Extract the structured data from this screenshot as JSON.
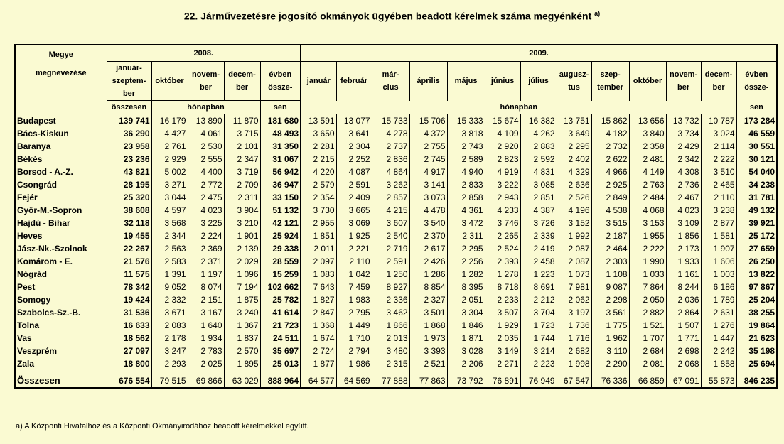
{
  "title": "22. Járművezetésre jogosító okmányok ügyében beadott kérelmek száma megyénként",
  "title_note": "a)",
  "header": {
    "county_col": [
      "Megye",
      "megnevezése"
    ],
    "year2008": "2008.",
    "year2009": "2009.",
    "cols2008": [
      "január-\nszeptem-\nber",
      "október",
      "novem-\nber",
      "decem-\nber",
      "évben\nössze-"
    ],
    "cols2009": [
      "január",
      "február",
      "már-\ncius",
      "április",
      "május",
      "június",
      "július",
      "augusz-\ntus",
      "szep-\ntember",
      "október",
      "novem-\nber",
      "decem-\nber",
      "évben\nössze-"
    ],
    "osszesen": "összesen",
    "honapban": "hónapban",
    "sen": "sen"
  },
  "rows": [
    {
      "name": "Budapest",
      "v": [
        "139 741",
        "16 179",
        "13 890",
        "11 870",
        "181 680",
        "13 591",
        "13 077",
        "15 733",
        "15 706",
        "15 333",
        "15 674",
        "16 382",
        "13 751",
        "15 862",
        "13 656",
        "13 732",
        "10 787",
        "173 284"
      ]
    },
    {
      "name": "Bács-Kiskun",
      "v": [
        "36 290",
        "4 427",
        "4 061",
        "3 715",
        "48 493",
        "3 650",
        "3 641",
        "4 278",
        "4 372",
        "3 818",
        "4 109",
        "4 262",
        "3 649",
        "4 182",
        "3 840",
        "3 734",
        "3 024",
        "46 559"
      ]
    },
    {
      "name": "Baranya",
      "v": [
        "23 958",
        "2 761",
        "2 530",
        "2 101",
        "31 350",
        "2 281",
        "2 304",
        "2 737",
        "2 755",
        "2 743",
        "2 920",
        "2 883",
        "2 295",
        "2 732",
        "2 358",
        "2 429",
        "2 114",
        "30 551"
      ]
    },
    {
      "name": "Békés",
      "v": [
        "23 236",
        "2 929",
        "2 555",
        "2 347",
        "31 067",
        "2 215",
        "2 252",
        "2 836",
        "2 745",
        "2 589",
        "2 823",
        "2 592",
        "2 402",
        "2 622",
        "2 481",
        "2 342",
        "2 222",
        "30 121"
      ]
    },
    {
      "name": "Borsod - A.-Z.",
      "v": [
        "43 821",
        "5 002",
        "4 400",
        "3 719",
        "56 942",
        "4 220",
        "4 087",
        "4 864",
        "4 917",
        "4 940",
        "4 919",
        "4 831",
        "4 329",
        "4 966",
        "4 149",
        "4 308",
        "3 510",
        "54 040"
      ]
    },
    {
      "name": "Csongrád",
      "v": [
        "28 195",
        "3 271",
        "2 772",
        "2 709",
        "36 947",
        "2 579",
        "2 591",
        "3 262",
        "3 141",
        "2 833",
        "3 222",
        "3 085",
        "2 636",
        "2 925",
        "2 763",
        "2 736",
        "2 465",
        "34 238"
      ]
    },
    {
      "name": "Fejér",
      "v": [
        "25 320",
        "3 044",
        "2 475",
        "2 311",
        "33 150",
        "2 354",
        "2 409",
        "2 857",
        "3 073",
        "2 858",
        "2 943",
        "2 851",
        "2 526",
        "2 849",
        "2 484",
        "2 467",
        "2 110",
        "31 781"
      ]
    },
    {
      "name": "Győr-M.-Sopron",
      "v": [
        "38 608",
        "4 597",
        "4 023",
        "3 904",
        "51 132",
        "3 730",
        "3 665",
        "4 215",
        "4 478",
        "4 361",
        "4 233",
        "4 387",
        "4 196",
        "4 538",
        "4 068",
        "4 023",
        "3 238",
        "49 132"
      ]
    },
    {
      "name": "Hajdú - Bihar",
      "v": [
        "32 118",
        "3 568",
        "3 225",
        "3 210",
        "42 121",
        "2 955",
        "3 069",
        "3 607",
        "3 540",
        "3 472",
        "3 746",
        "3 726",
        "3 152",
        "3 515",
        "3 153",
        "3 109",
        "2 877",
        "39 921"
      ]
    },
    {
      "name": "Heves",
      "v": [
        "19 455",
        "2 344",
        "2 224",
        "1 901",
        "25 924",
        "1 851",
        "1 925",
        "2 540",
        "2 370",
        "2 311",
        "2 265",
        "2 339",
        "1 992",
        "2 187",
        "1 955",
        "1 856",
        "1 581",
        "25 172"
      ]
    },
    {
      "name": "Jász-Nk.-Szolnok",
      "v": [
        "22 267",
        "2 563",
        "2 369",
        "2 139",
        "29 338",
        "2 011",
        "2 221",
        "2 719",
        "2 617",
        "2 295",
        "2 524",
        "2 419",
        "2 087",
        "2 464",
        "2 222",
        "2 173",
        "1 907",
        "27 659"
      ]
    },
    {
      "name": "Komárom - E.",
      "v": [
        "21 576",
        "2 583",
        "2 371",
        "2 029",
        "28 559",
        "2 097",
        "2 110",
        "2 591",
        "2 426",
        "2 256",
        "2 393",
        "2 458",
        "2 087",
        "2 303",
        "1 990",
        "1 933",
        "1 606",
        "26 250"
      ]
    },
    {
      "name": "Nógrád",
      "v": [
        "11 575",
        "1 391",
        "1 197",
        "1 096",
        "15 259",
        "1 083",
        "1 042",
        "1 250",
        "1 286",
        "1 282",
        "1 278",
        "1 223",
        "1 073",
        "1 108",
        "1 033",
        "1 161",
        "1 003",
        "13 822"
      ]
    },
    {
      "name": "Pest",
      "v": [
        "78 342",
        "9 052",
        "8 074",
        "7 194",
        "102 662",
        "7 643",
        "7 459",
        "8 927",
        "8 854",
        "8 395",
        "8 718",
        "8 691",
        "7 981",
        "9 087",
        "7 864",
        "8 244",
        "6 186",
        "97 867"
      ]
    },
    {
      "name": "Somogy",
      "v": [
        "19 424",
        "2 332",
        "2 151",
        "1 875",
        "25 782",
        "1 827",
        "1 983",
        "2 336",
        "2 327",
        "2 051",
        "2 233",
        "2 212",
        "2 062",
        "2 298",
        "2 050",
        "2 036",
        "1 789",
        "25 204"
      ]
    },
    {
      "name": "Szabolcs-Sz.-B.",
      "v": [
        "31 536",
        "3 671",
        "3 167",
        "3 240",
        "41 614",
        "2 847",
        "2 795",
        "3 462",
        "3 501",
        "3 304",
        "3 507",
        "3 704",
        "3 197",
        "3 561",
        "2 882",
        "2 864",
        "2 631",
        "38 255"
      ]
    },
    {
      "name": "Tolna",
      "v": [
        "16 633",
        "2 083",
        "1 640",
        "1 367",
        "21 723",
        "1 368",
        "1 449",
        "1 866",
        "1 868",
        "1 846",
        "1 929",
        "1 723",
        "1 736",
        "1 775",
        "1 521",
        "1 507",
        "1 276",
        "19 864"
      ]
    },
    {
      "name": "Vas",
      "v": [
        "18 562",
        "2 178",
        "1 934",
        "1 837",
        "24 511",
        "1 674",
        "1 710",
        "2 013",
        "1 973",
        "1 871",
        "2 035",
        "1 744",
        "1 716",
        "1 962",
        "1 707",
        "1 771",
        "1 447",
        "21 623"
      ]
    },
    {
      "name": "Veszprém",
      "v": [
        "27 097",
        "3 247",
        "2 783",
        "2 570",
        "35 697",
        "2 724",
        "2 794",
        "3 480",
        "3 393",
        "3 028",
        "3 149",
        "3 214",
        "2 682",
        "3 110",
        "2 684",
        "2 698",
        "2 242",
        "35 198"
      ]
    },
    {
      "name": "Zala",
      "v": [
        "18 800",
        "2 293",
        "2 025",
        "1 895",
        "25 013",
        "1 877",
        "1 986",
        "2 315",
        "2 521",
        "2 206",
        "2 271",
        "2 223",
        "1 998",
        "2 290",
        "2 081",
        "2 068",
        "1 858",
        "25 694"
      ]
    }
  ],
  "total": {
    "name": "Összesen",
    "v": [
      "676 554",
      "79 515",
      "69 866",
      "63 029",
      "888 964",
      "64 577",
      "64 569",
      "77 888",
      "77 863",
      "73 792",
      "76 891",
      "76 949",
      "67 547",
      "76 336",
      "66 859",
      "67 091",
      "55 873",
      "846 235"
    ]
  },
  "footnote": "a) A Központi Hivatalhoz és a Központi Okmányirodához beadott kérelmekkel együtt."
}
